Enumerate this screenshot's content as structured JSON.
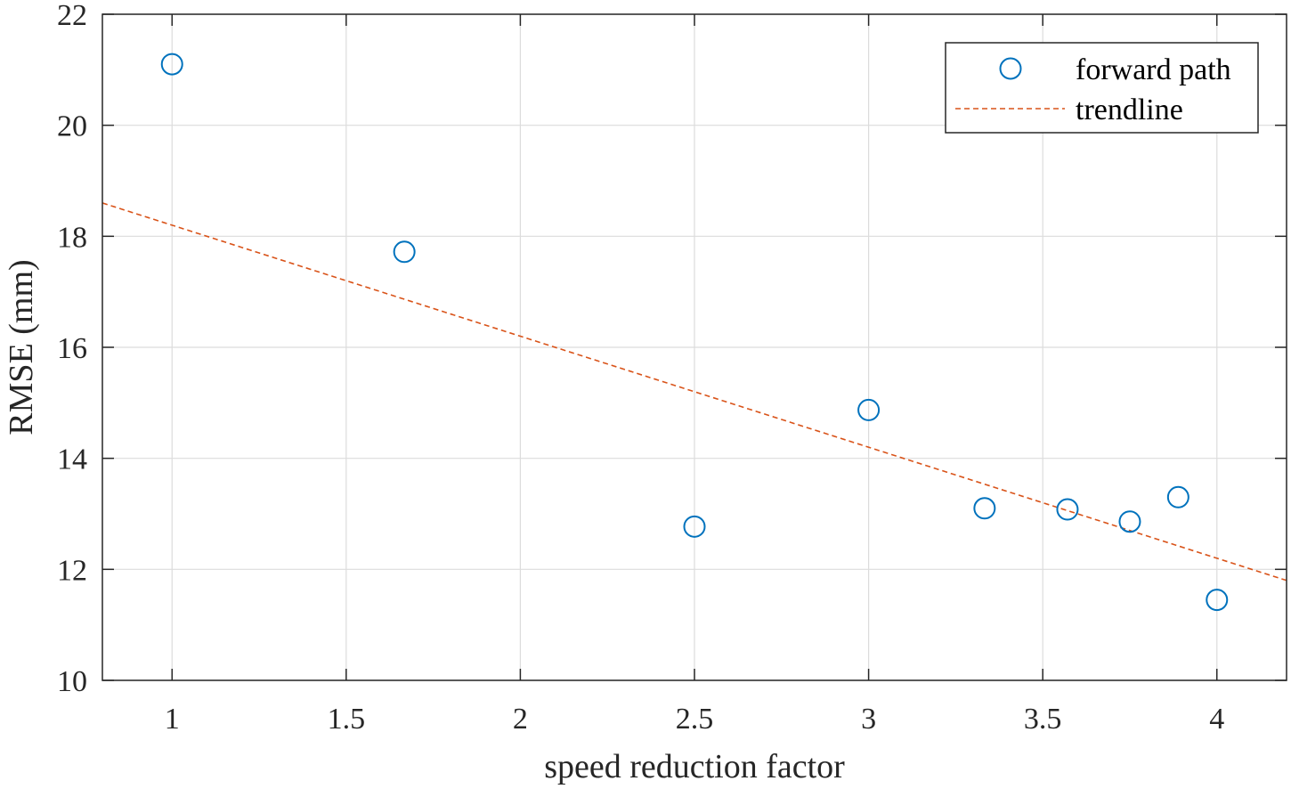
{
  "chart_data": {
    "type": "scatter",
    "xlabel": "speed reduction factor",
    "ylabel": "RMSE (mm)",
    "xlim": [
      0.8,
      4.2
    ],
    "ylim": [
      10,
      22
    ],
    "xticks": [
      1,
      1.5,
      2,
      2.5,
      3,
      3.5,
      4
    ],
    "xtick_labels": [
      "1",
      "1.5",
      "2",
      "2.5",
      "3",
      "3.5",
      "4"
    ],
    "yticks": [
      10,
      12,
      14,
      16,
      18,
      20,
      22
    ],
    "ytick_labels": [
      "10",
      "12",
      "14",
      "16",
      "18",
      "20",
      "22"
    ],
    "grid": true,
    "legend_position": "top-right",
    "series": [
      {
        "name": "forward path",
        "style": "markers-circle",
        "color": "#0072BD",
        "x": [
          1.0,
          1.667,
          2.5,
          3.0,
          3.333,
          3.571,
          3.75,
          3.889,
          4.0
        ],
        "y": [
          21.1,
          17.72,
          12.77,
          14.87,
          13.1,
          13.08,
          12.86,
          13.3,
          11.45
        ]
      },
      {
        "name": "trendline",
        "style": "dashed-line",
        "color": "#D95319",
        "x": [
          0.8,
          4.2
        ],
        "y": [
          18.6,
          11.8
        ]
      }
    ]
  }
}
